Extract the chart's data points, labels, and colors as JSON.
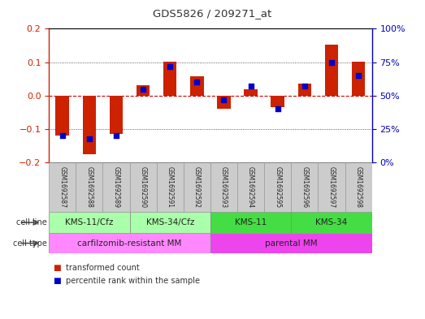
{
  "title": "GDS5826 / 209271_at",
  "samples": [
    "GSM1692587",
    "GSM1692588",
    "GSM1692589",
    "GSM1692590",
    "GSM1692591",
    "GSM1692592",
    "GSM1692593",
    "GSM1692594",
    "GSM1692595",
    "GSM1692596",
    "GSM1692597",
    "GSM1692598"
  ],
  "transformed_count": [
    -0.12,
    -0.175,
    -0.115,
    0.032,
    0.102,
    0.057,
    -0.038,
    0.018,
    -0.035,
    0.035,
    0.152,
    0.102
  ],
  "percentile_rank": [
    20,
    18,
    20,
    55,
    72,
    60,
    47,
    57,
    40,
    57,
    75,
    65
  ],
  "cell_line_groups": [
    {
      "label": "KMS-11/Cfz",
      "start": 0,
      "end": 3,
      "color": "#AAFFAA"
    },
    {
      "label": "KMS-34/Cfz",
      "start": 3,
      "end": 6,
      "color": "#AAFFAA"
    },
    {
      "label": "KMS-11",
      "start": 6,
      "end": 9,
      "color": "#44DD44"
    },
    {
      "label": "KMS-34",
      "start": 9,
      "end": 12,
      "color": "#44DD44"
    }
  ],
  "cell_type_groups": [
    {
      "label": "carfilzomib-resistant MM",
      "start": 0,
      "end": 6,
      "color": "#FF88FF"
    },
    {
      "label": "parental MM",
      "start": 6,
      "end": 12,
      "color": "#EE44EE"
    }
  ],
  "bar_color": "#CC2200",
  "dot_color": "#0000CC",
  "ylim": [
    -0.2,
    0.2
  ],
  "y2lim": [
    0,
    100
  ],
  "yticks": [
    -0.2,
    -0.1,
    0.0,
    0.1,
    0.2
  ],
  "y2ticks": [
    0,
    25,
    50,
    75,
    100
  ],
  "sample_bg": "#CCCCCC",
  "bar_width": 0.5
}
